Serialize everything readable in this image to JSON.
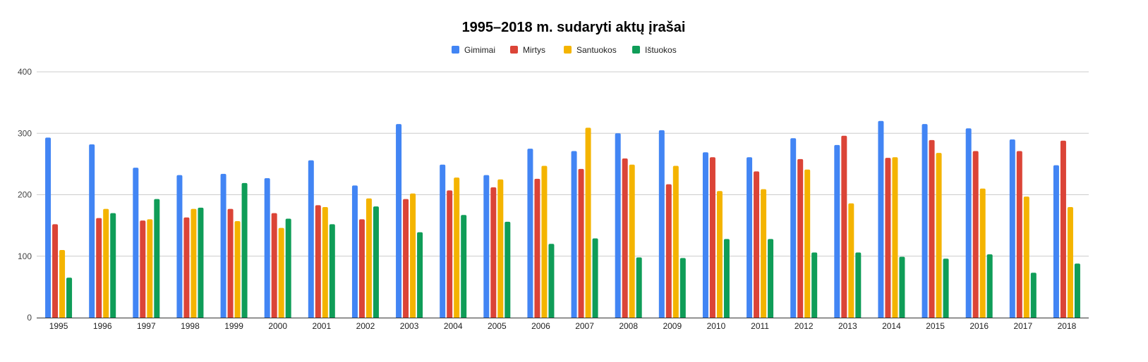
{
  "chart_data": {
    "type": "bar",
    "title": "1995–2018 m. sudaryti aktų įrašai",
    "xlabel": "",
    "ylabel": "",
    "ylim": [
      0,
      400
    ],
    "yticks": [
      0,
      100,
      200,
      300,
      400
    ],
    "grid": true,
    "legend_position": "top-center",
    "categories": [
      "1995",
      "1996",
      "1997",
      "1998",
      "1999",
      "2000",
      "2001",
      "2002",
      "2003",
      "2004",
      "2005",
      "2006",
      "2007",
      "2008",
      "2009",
      "2010",
      "2011",
      "2012",
      "2013",
      "2014",
      "2015",
      "2016",
      "2017",
      "2018"
    ],
    "series": [
      {
        "name": "Gimimai",
        "color": "#4285f4",
        "values": [
          293,
          282,
          244,
          232,
          234,
          227,
          256,
          215,
          315,
          249,
          232,
          275,
          271,
          300,
          305,
          269,
          261,
          292,
          281,
          320,
          315,
          308,
          290,
          248
        ]
      },
      {
        "name": "Mirtys",
        "color": "#db4437",
        "values": [
          152,
          162,
          158,
          163,
          177,
          170,
          183,
          160,
          193,
          207,
          212,
          226,
          242,
          259,
          217,
          261,
          238,
          258,
          296,
          260,
          289,
          271,
          271,
          288
        ]
      },
      {
        "name": "Santuokos",
        "color": "#f4b400",
        "values": [
          110,
          177,
          160,
          177,
          157,
          146,
          180,
          194,
          202,
          228,
          225,
          247,
          309,
          249,
          247,
          206,
          209,
          241,
          186,
          261,
          268,
          210,
          197,
          180
        ]
      },
      {
        "name": "Ištuokos",
        "color": "#0f9d58",
        "values": [
          65,
          170,
          193,
          179,
          219,
          161,
          152,
          181,
          139,
          167,
          156,
          120,
          129,
          98,
          97,
          128,
          128,
          106,
          106,
          99,
          96,
          103,
          73,
          88
        ]
      }
    ]
  }
}
